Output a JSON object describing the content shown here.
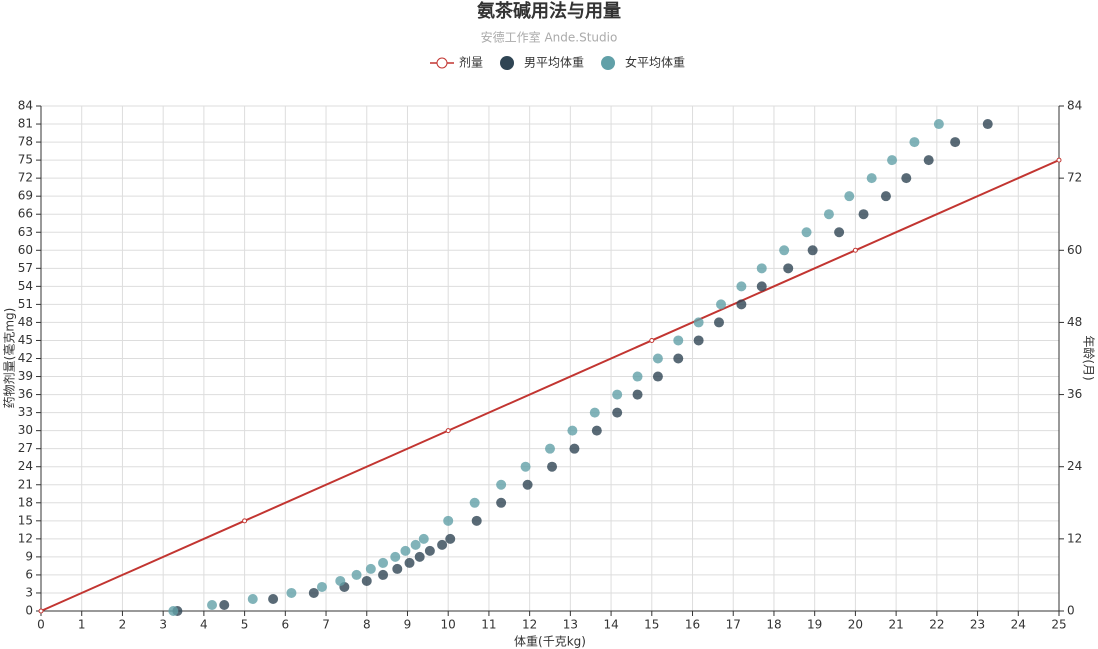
{
  "chart_data": {
    "type": "line",
    "title": "氨茶碱用法与用量",
    "subtitle": "安德工作室 Ande.Studio",
    "x_label": "体重(千克kg)",
    "y_label": "药物剂量(毫克mg)",
    "y2_label": "年龄(月)",
    "xlim": [
      0,
      25
    ],
    "xticks": [
      0,
      1,
      2,
      3,
      4,
      5,
      6,
      7,
      8,
      9,
      10,
      11,
      12,
      13,
      14,
      15,
      16,
      17,
      18,
      19,
      20,
      21,
      22,
      23,
      24,
      25
    ],
    "ylim": [
      0,
      84
    ],
    "yticks": [
      0,
      3,
      6,
      9,
      12,
      15,
      18,
      21,
      24,
      27,
      30,
      33,
      36,
      39,
      42,
      45,
      48,
      51,
      54,
      57,
      60,
      63,
      66,
      69,
      72,
      75,
      78,
      81,
      84
    ],
    "y2lim": [
      0,
      84
    ],
    "y2ticks": [
      0,
      12,
      24,
      36,
      48,
      60,
      72,
      84
    ],
    "grid": true,
    "legend": "top",
    "series": [
      {
        "name": "剂量",
        "type": "line",
        "color": "#c23531",
        "x": [
          0,
          5,
          10,
          15,
          20,
          25
        ],
        "values": [
          0,
          15,
          30,
          45,
          60,
          75
        ]
      },
      {
        "name": "男平均体重",
        "type": "scatter",
        "axis": "y2",
        "color": "#2f4554",
        "x": [
          3.35,
          4.5,
          5.7,
          6.7,
          7.45,
          8.0,
          8.4,
          8.75,
          9.05,
          9.3,
          9.55,
          9.85,
          10.05,
          10.7,
          11.3,
          11.95,
          12.55,
          13.1,
          13.65,
          14.15,
          14.65,
          15.15,
          15.65,
          16.15,
          16.65,
          17.2,
          17.7,
          18.35,
          18.95,
          19.6,
          20.2,
          20.75,
          21.25,
          21.8,
          22.45,
          23.25
        ],
        "values": [
          0,
          1,
          2,
          3,
          4,
          5,
          6,
          7,
          8,
          9,
          10,
          11,
          12,
          15,
          18,
          21,
          24,
          27,
          30,
          33,
          36,
          39,
          42,
          45,
          48,
          51,
          54,
          57,
          60,
          63,
          66,
          69,
          72,
          75,
          78,
          81
        ]
      },
      {
        "name": "女平均体重",
        "type": "scatter",
        "axis": "y2",
        "color": "#61a0a8",
        "x": [
          3.25,
          4.2,
          5.2,
          6.15,
          6.9,
          7.35,
          7.75,
          8.1,
          8.4,
          8.7,
          8.95,
          9.2,
          9.4,
          10.0,
          10.65,
          11.3,
          11.9,
          12.5,
          13.05,
          13.6,
          14.15,
          14.65,
          15.15,
          15.65,
          16.15,
          16.7,
          17.2,
          17.7,
          18.25,
          18.8,
          19.35,
          19.85,
          20.4,
          20.9,
          21.45,
          22.05
        ],
        "values": [
          0,
          1,
          2,
          3,
          4,
          5,
          6,
          7,
          8,
          9,
          10,
          11,
          12,
          15,
          18,
          21,
          24,
          27,
          30,
          33,
          36,
          39,
          42,
          45,
          48,
          51,
          54,
          57,
          60,
          63,
          66,
          69,
          72,
          75,
          78,
          81
        ]
      }
    ]
  }
}
